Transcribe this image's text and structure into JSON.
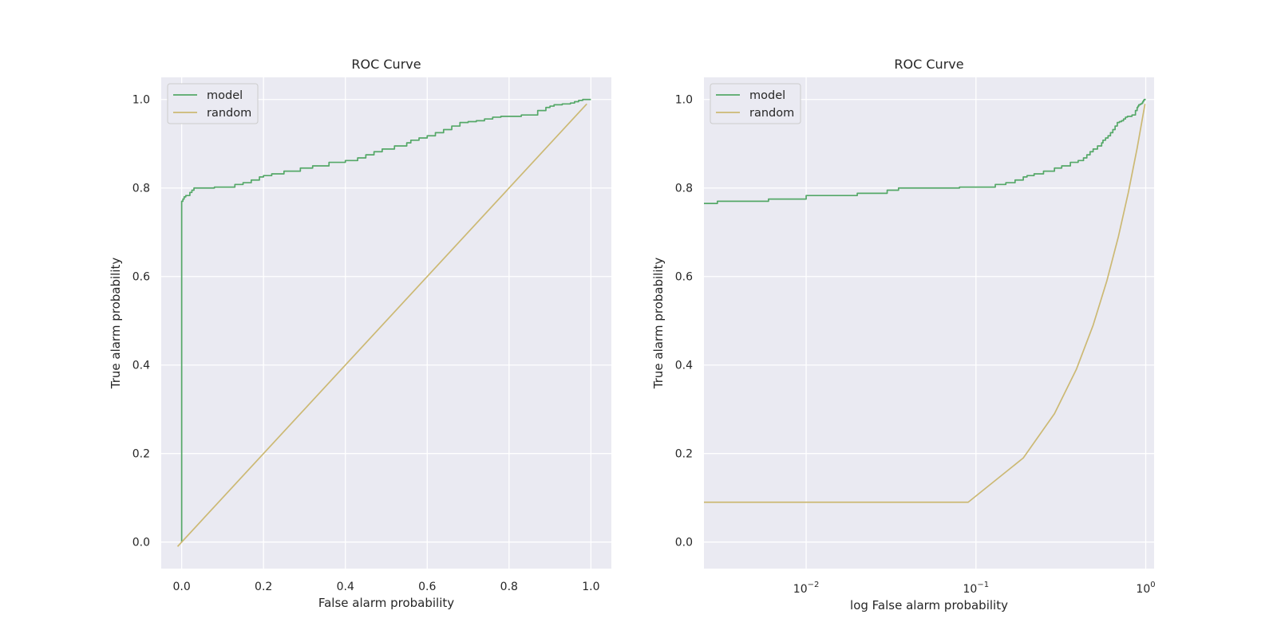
{
  "chart_data": [
    {
      "type": "line",
      "title": "ROC Curve",
      "xlabel": "False alarm probability",
      "ylabel": "True alarm probability",
      "xscale": "linear",
      "xlim": [
        -0.05,
        1.05
      ],
      "ylim": [
        -0.06,
        1.05
      ],
      "x_ticks": [
        0.0,
        0.2,
        0.4,
        0.6,
        0.8,
        1.0
      ],
      "x_tick_labels": [
        "0.0",
        "0.2",
        "0.4",
        "0.6",
        "0.8",
        "1.0"
      ],
      "y_ticks": [
        0.0,
        0.2,
        0.4,
        0.6,
        0.8,
        1.0
      ],
      "y_tick_labels": [
        "0.0",
        "0.2",
        "0.4",
        "0.6",
        "0.8",
        "1.0"
      ],
      "grid": true,
      "legend_position": "top-left",
      "series": [
        {
          "name": "model",
          "color": "#55a868",
          "step": true,
          "x": [
            0.0,
            0.0,
            0.0,
            0.003,
            0.006,
            0.01,
            0.02,
            0.025,
            0.03,
            0.035,
            0.08,
            0.13,
            0.15,
            0.17,
            0.19,
            0.2,
            0.22,
            0.25,
            0.29,
            0.32,
            0.36,
            0.4,
            0.43,
            0.45,
            0.47,
            0.49,
            0.52,
            0.55,
            0.56,
            0.58,
            0.6,
            0.62,
            0.64,
            0.66,
            0.68,
            0.7,
            0.72,
            0.74,
            0.76,
            0.78,
            0.83,
            0.87,
            0.89,
            0.9,
            0.91,
            0.93,
            0.95,
            0.96,
            0.97,
            0.98,
            1.0
          ],
          "y": [
            0.0,
            0.76,
            0.77,
            0.775,
            0.78,
            0.783,
            0.79,
            0.795,
            0.8,
            0.8,
            0.802,
            0.808,
            0.812,
            0.818,
            0.825,
            0.828,
            0.832,
            0.838,
            0.845,
            0.85,
            0.858,
            0.862,
            0.868,
            0.875,
            0.882,
            0.888,
            0.895,
            0.902,
            0.908,
            0.913,
            0.918,
            0.925,
            0.932,
            0.94,
            0.948,
            0.95,
            0.952,
            0.956,
            0.96,
            0.962,
            0.965,
            0.975,
            0.982,
            0.985,
            0.988,
            0.99,
            0.992,
            0.995,
            0.998,
            1.0,
            1.0
          ]
        },
        {
          "name": "random",
          "color": "#ccb974",
          "step": false,
          "x": [
            -0.01,
            0.99
          ],
          "y": [
            -0.01,
            0.99
          ]
        }
      ]
    },
    {
      "type": "line",
      "title": "ROC Curve",
      "xlabel": "log False alarm probability",
      "ylabel": "True alarm probability",
      "xscale": "log",
      "xlim": [
        0.0025,
        1.12
      ],
      "ylim": [
        -0.06,
        1.05
      ],
      "x_ticks": [
        0.01,
        0.1,
        1.0
      ],
      "x_tick_labels": [
        {
          "base": "10",
          "exp": "−2"
        },
        {
          "base": "10",
          "exp": "−1"
        },
        {
          "base": "10",
          "exp": "0"
        }
      ],
      "y_ticks": [
        0.0,
        0.2,
        0.4,
        0.6,
        0.8,
        1.0
      ],
      "y_tick_labels": [
        "0.0",
        "0.2",
        "0.4",
        "0.6",
        "0.8",
        "1.0"
      ],
      "grid": true,
      "legend_position": "top-left",
      "series": [
        {
          "name": "model",
          "color": "#55a868",
          "step": true,
          "x": [
            0.0025,
            0.003,
            0.006,
            0.01,
            0.02,
            0.03,
            0.035,
            0.08,
            0.13,
            0.15,
            0.17,
            0.19,
            0.2,
            0.22,
            0.25,
            0.29,
            0.32,
            0.36,
            0.4,
            0.43,
            0.45,
            0.47,
            0.49,
            0.52,
            0.55,
            0.56,
            0.58,
            0.6,
            0.62,
            0.64,
            0.66,
            0.68,
            0.7,
            0.72,
            0.74,
            0.76,
            0.78,
            0.83,
            0.87,
            0.89,
            0.9,
            0.91,
            0.93,
            0.95,
            0.96,
            0.97,
            0.98,
            1.0
          ],
          "y": [
            0.765,
            0.77,
            0.775,
            0.783,
            0.788,
            0.795,
            0.8,
            0.802,
            0.808,
            0.812,
            0.818,
            0.825,
            0.828,
            0.832,
            0.838,
            0.845,
            0.85,
            0.858,
            0.862,
            0.868,
            0.875,
            0.882,
            0.888,
            0.895,
            0.902,
            0.908,
            0.913,
            0.918,
            0.925,
            0.932,
            0.94,
            0.948,
            0.95,
            0.952,
            0.956,
            0.96,
            0.962,
            0.965,
            0.975,
            0.982,
            0.985,
            0.988,
            0.99,
            0.992,
            0.995,
            0.998,
            1.0,
            1.0
          ]
        },
        {
          "name": "random",
          "color": "#ccb974",
          "step": false,
          "x": [
            0.0025,
            0.09,
            0.19,
            0.29,
            0.39,
            0.49,
            0.59,
            0.69,
            0.79,
            0.89,
            0.99
          ],
          "y": [
            0.09,
            0.09,
            0.19,
            0.29,
            0.39,
            0.49,
            0.59,
            0.69,
            0.79,
            0.89,
            0.99
          ]
        }
      ]
    }
  ]
}
